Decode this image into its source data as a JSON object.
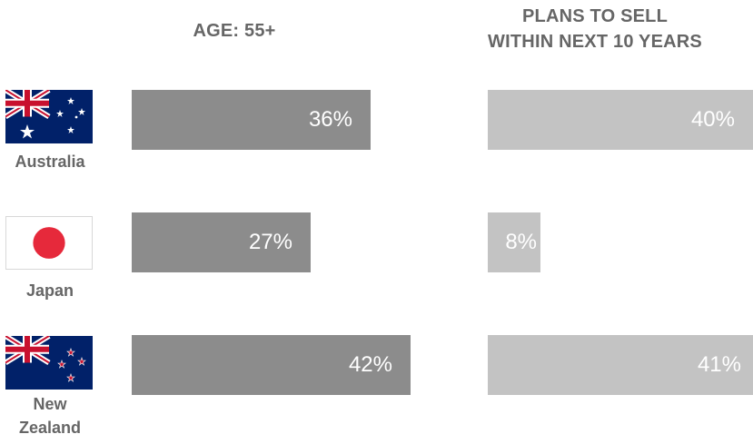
{
  "headers": {
    "age": "AGE: 55+",
    "plans_line1": "PLANS TO SELL",
    "plans_line2": "WITHIN NEXT 10 YEARS"
  },
  "countries": [
    {
      "name": "Australia",
      "flag": "australia-flag-icon",
      "age_label": "36%",
      "plans_label": "40%"
    },
    {
      "name": "Japan",
      "flag": "japan-flag-icon",
      "age_label": "27%",
      "plans_label": "8%"
    },
    {
      "name_line1": "New",
      "name_line2": "Zealand",
      "flag": "new-zealand-flag-icon",
      "age_label": "42%",
      "plans_label": "41%"
    }
  ],
  "colors": {
    "age_bar": "#8c8c8c",
    "plans_bar": "#c3c3c3",
    "text": "#666666"
  },
  "chart_data": [
    {
      "type": "bar",
      "orientation": "horizontal",
      "title": "AGE: 55+",
      "categories": [
        "Australia",
        "Japan",
        "New Zealand"
      ],
      "values": [
        36,
        27,
        42
      ]
    },
    {
      "type": "bar",
      "orientation": "horizontal",
      "title": "PLANS TO SELL WITHIN NEXT 10 YEARS",
      "categories": [
        "Australia",
        "Japan",
        "New Zealand"
      ],
      "values": [
        40,
        8,
        41
      ]
    }
  ]
}
